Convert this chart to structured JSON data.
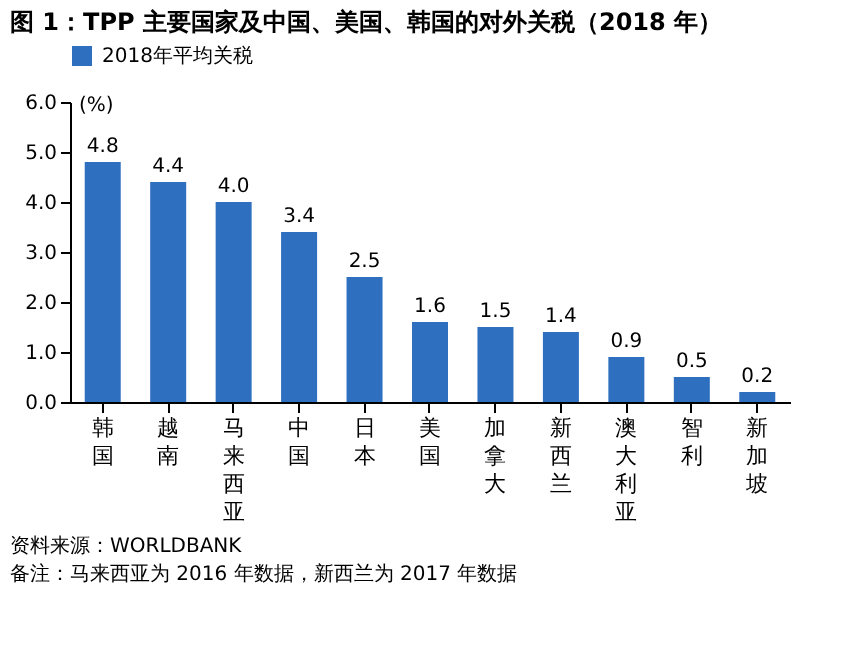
{
  "chart_data": {
    "type": "bar",
    "title": "图 1：TPP 主要国家及中国、美国、韩国的对外关税（2018 年）",
    "ylabel": "(%)",
    "categories": [
      "韩国",
      "越南",
      "马来西亚",
      "中国",
      "日本",
      "美国",
      "加拿大",
      "新西兰",
      "澳大利亚",
      "智利",
      "新加坡"
    ],
    "series": [
      {
        "name": "2018年平均关税",
        "color": "#2e6fc0",
        "values": [
          4.8,
          4.4,
          4.0,
          3.4,
          2.5,
          1.6,
          1.5,
          1.4,
          0.9,
          0.5,
          0.2
        ]
      }
    ],
    "ylim": [
      0,
      6
    ],
    "yticks": [
      {
        "value": 0,
        "label": "0.0"
      },
      {
        "value": 1,
        "label": "1.0"
      },
      {
        "value": 2,
        "label": "2.0"
      },
      {
        "value": 3,
        "label": "3.0"
      },
      {
        "value": 4,
        "label": "4.0"
      },
      {
        "value": 5,
        "label": "5.0"
      },
      {
        "value": 6,
        "label": "6.0"
      }
    ],
    "value_labels": [
      "4.8",
      "4.4",
      "4.0",
      "3.4",
      "2.5",
      "1.6",
      "1.5",
      "1.4",
      "0.9",
      "0.5",
      "0.2"
    ],
    "grid": false,
    "legend": "top",
    "annotations": [
      "资料来源：WORLDBANK",
      "备注：马来西亚为 2016 年数据，新西兰为 2017 年数据"
    ]
  }
}
